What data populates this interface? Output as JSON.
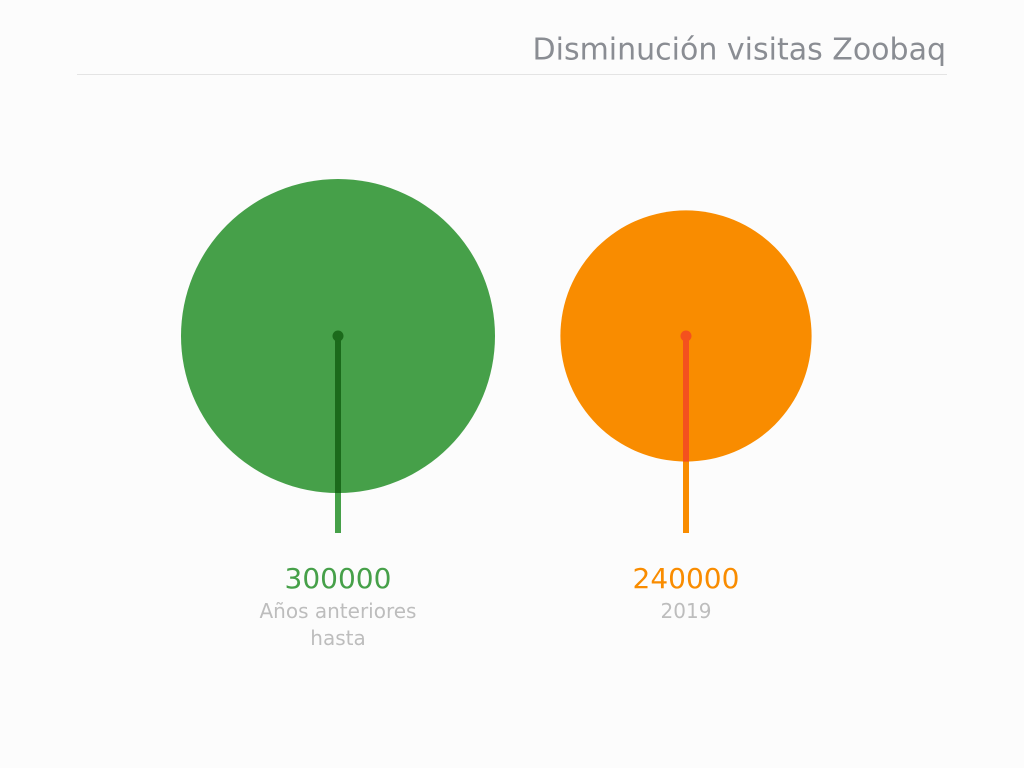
{
  "chart_data": {
    "type": "bubble",
    "title": "Disminución visitas Zoobaq",
    "categories": [
      "Años anteriores hasta",
      "2019"
    ],
    "values": [
      300000,
      240000
    ],
    "colors": [
      "#46a049",
      "#f98c00"
    ],
    "accent_colors": [
      "#1b6a1b",
      "#f4511e"
    ]
  }
}
